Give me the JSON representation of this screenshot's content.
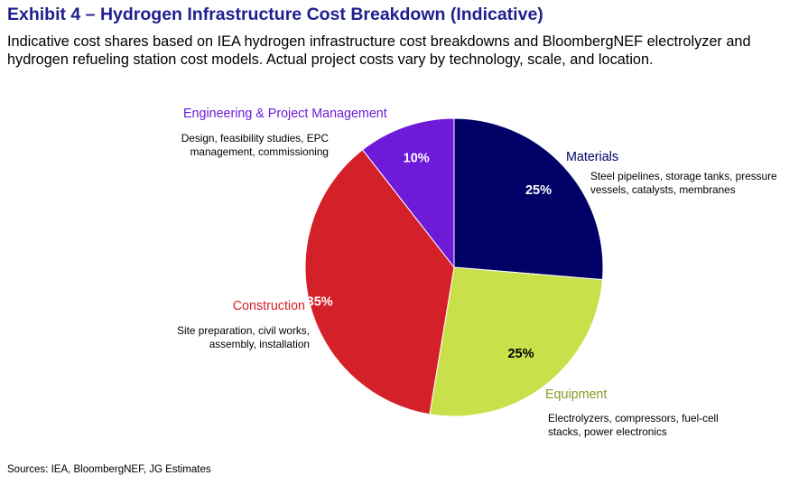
{
  "title": "Exhibit 4 – Hydrogen Infrastructure Cost Breakdown (Indicative)",
  "subtitle": "Indicative cost shares based on IEA hydrogen infrastructure cost breakdowns and BloombergNEF electrolyzer and hydrogen refueling station cost models. Actual project costs vary by technology, scale, and location.",
  "source": "Sources: IEA, BloombergNEF, JG Estimates",
  "chart_data": {
    "type": "pie",
    "title": "Exhibit 4 – Hydrogen Infrastructure Cost Breakdown (Indicative)",
    "unit": "%",
    "slices": [
      {
        "name": "Materials",
        "value": 25,
        "value_label": "25%",
        "description": "Steel pipelines, storage tanks, pressure vessels, catalysts, membranes",
        "desc_lines": [
          "Steel pipelines, storage tanks, pressure",
          "vessels, catalysts, membranes"
        ],
        "color": "#000066",
        "label_color": "#000066",
        "text_color": "#ffffff"
      },
      {
        "name": "Equipment",
        "value": 25,
        "value_label": "25%",
        "description": "Electrolyzers, compressors, fuel-cell stacks, power electronics",
        "desc_lines": [
          "Electrolyzers, compressors, fuel-cell",
          "stacks, power electronics"
        ],
        "color": "#c9e04a",
        "label_color": "#8c9a26",
        "text_color": "#000000"
      },
      {
        "name": "Construction",
        "value": 35,
        "value_label": "35%",
        "description": "Site preparation, civil works, assembly, installation",
        "desc_lines": [
          "Site preparation, civil works,",
          "assembly, installation"
        ],
        "color": "#d42028",
        "label_color": "#d42028",
        "text_color": "#ffffff"
      },
      {
        "name": "Engineering & Project Management",
        "value": 10,
        "value_label": "10%",
        "description": "Design, feasibility studies, EPC management, commissioning",
        "desc_lines": [
          "Design, feasibility studies, EPC",
          "management, commissioning"
        ],
        "color": "#6e1ad9",
        "label_color": "#6e1ad9",
        "text_color": "#ffffff"
      }
    ]
  }
}
